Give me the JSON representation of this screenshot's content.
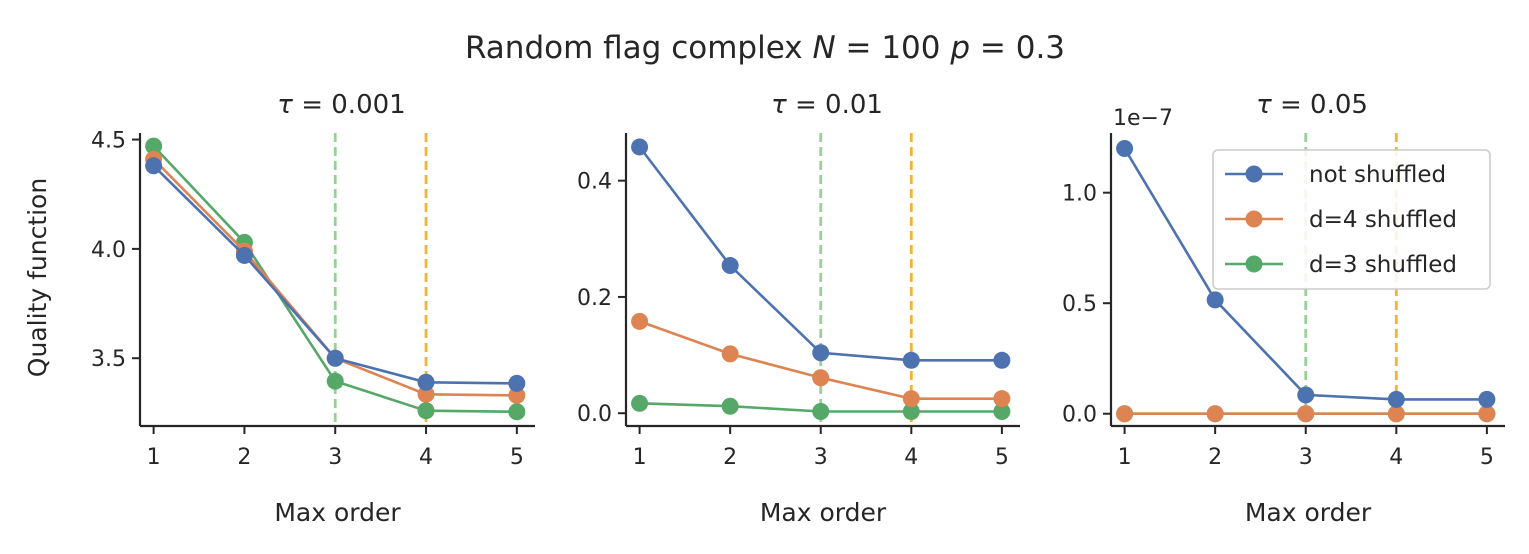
{
  "figure": {
    "suptitle_prefix": "Random flag complex ",
    "suptitle_N": "N",
    "suptitle_eq1": " = 100 ",
    "suptitle_p": "p",
    "suptitle_eq2": " = 0.3"
  },
  "colors": {
    "not_shuffled": "#4c72b0",
    "d4_shuffled": "#dd8452",
    "d3_shuffled": "#55a868",
    "vline_green": "#98d098",
    "vline_orange": "#f5b335"
  },
  "legend": {
    "placement": "upper-right of third panel",
    "entries": [
      "not shuffled",
      "d=4 shuffled",
      "d=3 shuffled"
    ]
  },
  "chart_data": [
    {
      "type": "line",
      "title_tau": "τ",
      "title_value": " = 0.001",
      "xlabel": "Max order",
      "ylabel": "Quality function",
      "x": [
        1,
        2,
        3,
        4,
        5
      ],
      "xlim": [
        0.85,
        5.2
      ],
      "ylim": [
        3.19,
        4.53
      ],
      "yticks": [
        3.5,
        4.0,
        4.5
      ],
      "ytick_labels": [
        "3.5",
        "4.0",
        "4.5"
      ],
      "offset_label": "",
      "vlines": [
        3,
        4
      ],
      "series": [
        {
          "name": "not shuffled",
          "values": [
            4.38,
            3.97,
            3.5,
            3.39,
            3.385
          ]
        },
        {
          "name": "d=4 shuffled",
          "values": [
            4.41,
            3.99,
            3.5,
            3.335,
            3.33
          ]
        },
        {
          "name": "d=3 shuffled",
          "values": [
            4.47,
            4.03,
            3.395,
            3.26,
            3.255
          ]
        }
      ]
    },
    {
      "type": "line",
      "title_tau": "τ",
      "title_value": " = 0.01",
      "xlabel": "Max order",
      "ylabel": "",
      "x": [
        1,
        2,
        3,
        4,
        5
      ],
      "xlim": [
        0.85,
        5.2
      ],
      "ylim": [
        -0.022,
        0.482
      ],
      "yticks": [
        0.0,
        0.2,
        0.4
      ],
      "ytick_labels": [
        "0.0",
        "0.2",
        "0.4"
      ],
      "offset_label": "",
      "vlines": [
        3,
        4
      ],
      "series": [
        {
          "name": "not shuffled",
          "values": [
            0.458,
            0.254,
            0.104,
            0.091,
            0.091
          ]
        },
        {
          "name": "d=4 shuffled",
          "values": [
            0.158,
            0.102,
            0.061,
            0.025,
            0.025
          ]
        },
        {
          "name": "d=3 shuffled",
          "values": [
            0.017,
            0.012,
            0.003,
            0.003,
            0.003
          ]
        }
      ]
    },
    {
      "type": "line",
      "title_tau": "τ",
      "title_value": " = 0.05",
      "xlabel": "Max order",
      "ylabel": "",
      "x": [
        1,
        2,
        3,
        4,
        5
      ],
      "xlim": [
        0.85,
        5.2
      ],
      "ylim": [
        -0.0555,
        1.27
      ],
      "yticks": [
        0.0,
        0.5,
        1.0
      ],
      "ytick_labels": [
        "0.0",
        "0.5",
        "1.0"
      ],
      "offset_label": "1e−7",
      "vlines": [
        3,
        4
      ],
      "series": [
        {
          "name": "not shuffled",
          "values": [
            1.2,
            0.515,
            0.085,
            0.065,
            0.065
          ]
        },
        {
          "name": "d=4 shuffled",
          "values": [
            0.0,
            0.0,
            0.0,
            0.0,
            0.0
          ]
        },
        {
          "name": "d=3 shuffled",
          "values": [
            0.0,
            0.0,
            0.0,
            0.0,
            0.0
          ]
        }
      ]
    }
  ]
}
